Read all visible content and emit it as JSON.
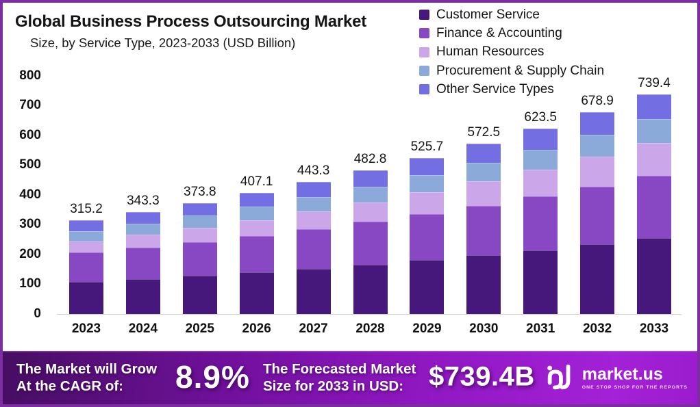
{
  "frame": {
    "border_color": "#7c2da0"
  },
  "header": {
    "title": "Global Business Process Outsourcing Market",
    "subtitle": "Size, by Service Type, 2023-2033 (USD Billion)"
  },
  "chart_data": {
    "type": "bar",
    "stacked": true,
    "title": "Global Business Process Outsourcing Market Size, by Service Type, 2023-2033 (USD Billion)",
    "categories": [
      "2023",
      "2024",
      "2025",
      "2026",
      "2027",
      "2028",
      "2029",
      "2030",
      "2031",
      "2032",
      "2033"
    ],
    "totals": [
      315.2,
      343.3,
      373.8,
      407.1,
      443.3,
      482.8,
      525.7,
      572.5,
      623.5,
      678.9,
      739.4
    ],
    "series": [
      {
        "name": "Customer Service",
        "color": "#46187c",
        "values": [
          108.7,
          118.4,
          128.9,
          140.3,
          152.8,
          166.4,
          181.2,
          197.3,
          214.9,
          234.0,
          254.3
        ]
      },
      {
        "name": "Finance & Accounting",
        "color": "#8848c4",
        "values": [
          97.4,
          105.3,
          113.7,
          122.9,
          132.7,
          143.4,
          154.9,
          167.3,
          180.7,
          195.1,
          210.7
        ]
      },
      {
        "name": "Human Resources",
        "color": "#cba7e9",
        "values": [
          38.1,
          42.5,
          47.4,
          52.8,
          58.8,
          65.4,
          72.8,
          80.9,
          89.9,
          99.9,
          110.9
        ]
      },
      {
        "name": "Procurement & Supply Chain",
        "color": "#8caad9",
        "values": [
          35.3,
          38.3,
          41.6,
          45.1,
          48.9,
          53.1,
          57.6,
          62.5,
          67.8,
          73.6,
          79.9
        ]
      },
      {
        "name": "Other Service Types",
        "color": "#736ee2",
        "values": [
          35.7,
          38.8,
          42.2,
          46.0,
          50.1,
          54.5,
          59.2,
          64.5,
          70.2,
          76.3,
          83.6
        ]
      }
    ],
    "xlabel": "",
    "ylabel": "",
    "ylim": [
      0,
      800
    ],
    "yticks": [
      0,
      100,
      200,
      300,
      400,
      500,
      600,
      700,
      800
    ],
    "grid": false,
    "legend_position": "top-right",
    "value_labels": "totals above bars"
  },
  "banner": {
    "grow_line1": "The Market will Grow",
    "grow_line2": "At the CAGR of:",
    "cagr": "8.9%",
    "forecast_line1": "The Forecasted Market",
    "forecast_line2": "Size for 2033 in USD:",
    "forecast_value": "$739.4B",
    "brand": "market.us",
    "brand_tagline": "ONE STOP SHOP FOR THE REPORTS"
  }
}
